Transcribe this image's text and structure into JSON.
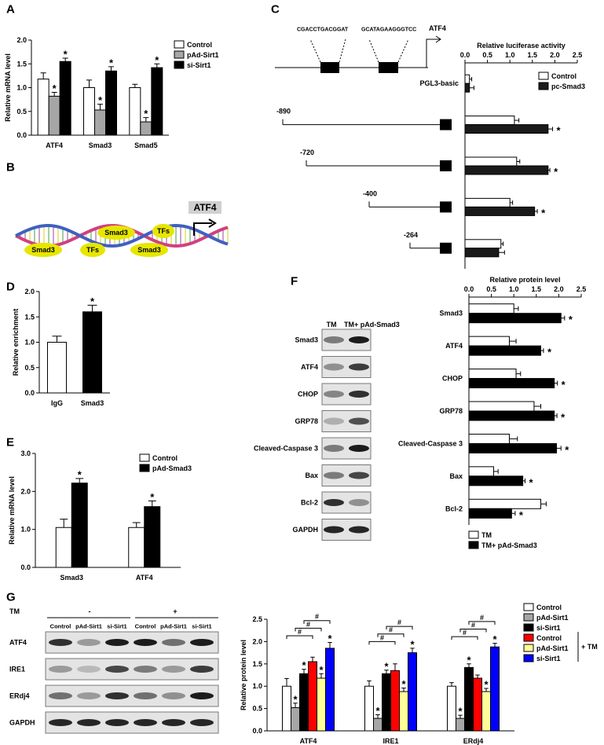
{
  "panels": [
    "A",
    "B",
    "C",
    "D",
    "E",
    "F",
    "G"
  ],
  "diagram_b": {
    "factors": [
      "Smad3",
      "TFs",
      "Smad3",
      "TFs",
      "Smad3"
    ],
    "gene": "ATF4"
  },
  "diagram_c": {
    "sequences": [
      "CGACCTGACGGAT",
      "GCATAGAAGGGTCC"
    ],
    "gene": "ATF4"
  },
  "blot_f": {
    "columns": [
      "TM",
      "TM+ pAd-Smad3"
    ],
    "rows": [
      "Smad3",
      "ATF4",
      "CHOP",
      "GRP78",
      "Cleaved-Caspase 3",
      "Bax",
      "Bcl-2",
      "GAPDH"
    ]
  },
  "blot_g": {
    "treatment": "TM",
    "levels": [
      "-",
      "+"
    ],
    "columns": [
      "Control",
      "pAd-Sirt1",
      "si-Sirt1",
      "Control",
      "pAd-Sirt1",
      "si-Sirt1"
    ],
    "rows": [
      "ATF4",
      "IRE1",
      "ERdj4",
      "GAPDH"
    ]
  },
  "chart_data": [
    {
      "type": "bar",
      "ylabel": "Relative mRNA level",
      "categories": [
        "ATF4",
        "Smad3",
        "Smad5"
      ],
      "series": [
        {
          "name": "Control",
          "color": "#ffffff",
          "values": [
            1.18,
            1.0,
            1.0
          ],
          "errors": [
            0.13,
            0.16,
            0.07
          ],
          "significance": [
            null,
            null,
            null
          ]
        },
        {
          "name": "pAd-Sirt1",
          "color": "#a6a6a6",
          "values": [
            0.82,
            0.53,
            0.28
          ],
          "errors": [
            0.08,
            0.12,
            0.09
          ],
          "significance": [
            "*",
            "*",
            "*"
          ]
        },
        {
          "name": "si-Sirt1",
          "color": "#000000",
          "values": [
            1.55,
            1.35,
            1.42
          ],
          "errors": [
            0.07,
            0.09,
            0.08
          ],
          "significance": [
            "*",
            "*",
            "*"
          ]
        }
      ],
      "ylim": [
        0,
        2
      ],
      "yticks": [
        {
          "value": 0,
          "label": "0.0"
        },
        {
          "value": 0.5,
          "label": "0.5"
        },
        {
          "value": 1,
          "label": "1.0"
        },
        {
          "value": 1.5,
          "label": "1.5"
        },
        {
          "value": 2,
          "label": "2.0"
        }
      ],
      "legend": "upper right"
    },
    {
      "type": "hbar",
      "xlabel": "Relative luciferase activity",
      "categories": [
        "PGL3-basic",
        "-890",
        "-720",
        "-400",
        "-264"
      ],
      "series": [
        {
          "name": "Control",
          "color": "#ffffff",
          "values": [
            0.1,
            1.1,
            1.15,
            1.0,
            0.8
          ],
          "errors": [
            0.05,
            0.1,
            0.07,
            0.06,
            0.05
          ],
          "significance": [
            null,
            null,
            null,
            null,
            null
          ]
        },
        {
          "name": "pc-Smad3",
          "color": "#1a1a1a",
          "values": [
            0.1,
            1.85,
            1.85,
            1.55,
            0.75
          ],
          "errors": [
            0.1,
            0.1,
            0.04,
            0.06,
            0.13
          ],
          "significance": [
            null,
            "*",
            "*",
            "*",
            null
          ]
        }
      ],
      "xlim": [
        0,
        2.5
      ],
      "xticks": [
        {
          "value": 0,
          "label": "0.0"
        },
        {
          "value": 0.5,
          "label": "0.5"
        },
        {
          "value": 1,
          "label": "1.0"
        },
        {
          "value": 1.5,
          "label": "1.5"
        },
        {
          "value": 2,
          "label": "2.0"
        },
        2.5
      ],
      "legend": "upper right"
    },
    {
      "type": "bar",
      "ylabel": "Relative enrichment",
      "categories": [
        "IgG",
        "Smad3"
      ],
      "values": [
        1.0,
        1.6
      ],
      "errors": [
        0.12,
        0.13
      ],
      "significance": [
        null,
        "*"
      ],
      "colors": [
        "#ffffff",
        "#000000"
      ],
      "ylim": [
        0,
        2
      ],
      "yticks": [
        {
          "value": 0,
          "label": "0.0"
        },
        {
          "value": 0.5,
          "label": "0.5"
        },
        {
          "value": 1,
          "label": "1.0"
        },
        {
          "value": 1.5,
          "label": "1.5"
        },
        {
          "value": 2,
          "label": "2.0"
        }
      ]
    },
    {
      "type": "bar",
      "ylabel": "Relative mRNA level",
      "categories": [
        "Smad3",
        "ATF4"
      ],
      "series": [
        {
          "name": "Control",
          "color": "#ffffff",
          "values": [
            1.05,
            1.05
          ],
          "errors": [
            0.22,
            0.13
          ],
          "significance": [
            null,
            null
          ]
        },
        {
          "name": "pAd-Smad3",
          "color": "#000000",
          "values": [
            2.22,
            1.6
          ],
          "errors": [
            0.12,
            0.15
          ],
          "significance": [
            "*",
            "*"
          ]
        }
      ],
      "ylim": [
        0,
        3
      ],
      "yticks": [
        {
          "value": 0,
          "label": "0.0"
        },
        {
          "value": 1,
          "label": "1.0"
        },
        {
          "value": 2,
          "label": "2.0"
        },
        {
          "value": 3,
          "label": "3.0"
        }
      ],
      "legend": "upper right"
    },
    {
      "type": "hbar",
      "xlabel": "Relative protein level",
      "categories": [
        "Smad3",
        "ATF4",
        "CHOP",
        "GRP78",
        "Cleaved-Caspase 3",
        "Bax",
        "Bcl-2"
      ],
      "series": [
        {
          "name": "TM",
          "color": "#ffffff",
          "values": [
            1.0,
            0.9,
            1.05,
            1.45,
            0.9,
            0.55,
            1.6
          ],
          "errors": [
            0.1,
            0.15,
            0.1,
            0.15,
            0.18,
            0.1,
            0.12
          ],
          "significance": [
            null,
            null,
            null,
            null,
            null,
            null,
            null
          ]
        },
        {
          "name": "TM+ pAd-Smad3",
          "color": "#000000",
          "values": [
            2.05,
            1.6,
            1.9,
            1.9,
            1.95,
            1.2,
            0.95
          ],
          "errors": [
            0.08,
            0.06,
            0.07,
            0.06,
            0.1,
            0.05,
            0.08
          ],
          "significance": [
            "*",
            "*",
            "*",
            "*",
            "*",
            "*",
            "*"
          ]
        }
      ],
      "xlim": [
        0,
        2.5
      ],
      "xticks": [
        {
          "value": 0,
          "label": "0.0"
        },
        0.5,
        {
          "value": 1,
          "label": "1.0"
        },
        1.5,
        {
          "value": 2,
          "label": "2.0"
        },
        2.5
      ],
      "legend": "lower left"
    },
    {
      "type": "bar",
      "ylabel": "Relative protein level",
      "categories": [
        "ATF4",
        "IRE1",
        "ERdj4"
      ],
      "series": [
        {
          "name": "Control",
          "color": "#ffffff",
          "values": [
            1.0,
            1.0,
            1.0
          ],
          "errors": [
            0.17,
            0.12,
            0.08
          ],
          "significance": [
            null,
            null,
            null
          ]
        },
        {
          "name": "pAd-Sirt1",
          "color": "#a6a6a6",
          "values": [
            0.52,
            0.28,
            0.28
          ],
          "errors": [
            0.1,
            0.08,
            0.07
          ],
          "significance": [
            "*",
            "*",
            "*"
          ]
        },
        {
          "name": "si-Sirt1",
          "color": "#000000",
          "values": [
            1.28,
            1.28,
            1.42
          ],
          "errors": [
            0.1,
            0.08,
            0.08
          ],
          "significance": [
            "*",
            "*",
            "*"
          ]
        },
        {
          "name": "Control",
          "color": "#ff0000",
          "values": [
            1.55,
            1.35,
            1.18
          ],
          "errors": [
            0.1,
            0.15,
            0.07
          ],
          "significance": [
            null,
            null,
            null
          ]
        },
        {
          "name": "pAd-Sirt1",
          "color": "#ffff99",
          "values": [
            1.18,
            0.88,
            0.88
          ],
          "errors": [
            0.1,
            0.08,
            0.07
          ],
          "significance": [
            "*",
            "*",
            "*"
          ]
        },
        {
          "name": "si-Sirt1",
          "color": "#0000ff",
          "values": [
            1.85,
            1.75,
            1.88
          ],
          "errors": [
            0.13,
            0.1,
            0.08
          ],
          "significance": [
            "*",
            "*",
            "*"
          ]
        }
      ],
      "ylim": [
        0,
        2.5
      ],
      "yticks": [
        {
          "value": 0,
          "label": "0.0"
        },
        0.5,
        {
          "value": 1,
          "label": "1.0"
        },
        1.5,
        {
          "value": 2,
          "label": "2.0"
        },
        2.5
      ],
      "legend": "upper right",
      "group_label": "+ TM",
      "bracket_label": "#"
    }
  ]
}
